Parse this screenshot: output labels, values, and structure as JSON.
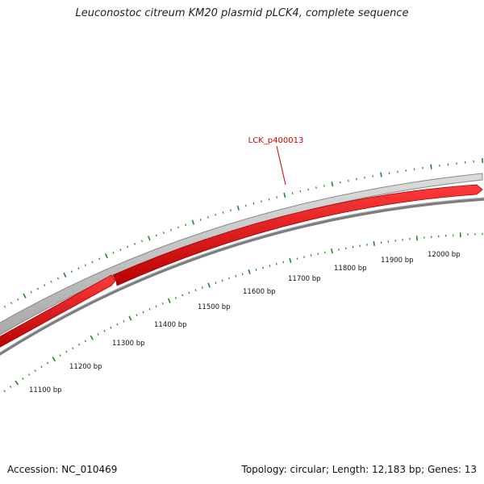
{
  "title": "Leuconostoc citreum KM20 plasmid pLCK4, complete sequence",
  "footer": {
    "accession": "Accession: NC_010469",
    "summary": "Topology: circular; Length: 12,183 bp; Genes: 13"
  },
  "gene_label": "LCK_p400013",
  "ruler_labels": [
    "11100 bp",
    "11200 bp",
    "11300 bp",
    "11400 bp",
    "11500 bp",
    "11600 bp",
    "11700 bp",
    "11800 bp",
    "11900 bp",
    "12000 bp"
  ],
  "colors": {
    "gene": "#ee1111",
    "gene_label": "#cc0000",
    "backbone": "#c8c8c8",
    "inner_ring": "#808080",
    "ticks": "#228822"
  }
}
